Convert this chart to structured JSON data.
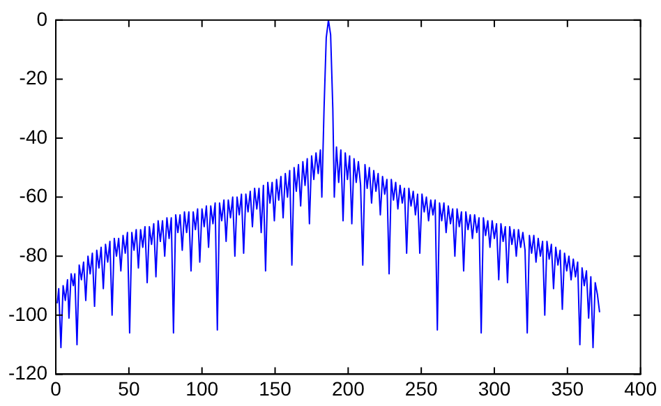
{
  "chart_data": {
    "type": "line",
    "xlim": [
      0,
      400
    ],
    "ylim": [
      -120,
      0
    ],
    "xticks": [
      0,
      50,
      100,
      150,
      200,
      250,
      300,
      350,
      400
    ],
    "yticks": [
      -120,
      -100,
      -80,
      -60,
      -40,
      -20,
      0
    ],
    "grid": false,
    "legend": false,
    "marker": "none",
    "line_style": "solid",
    "series": [
      {
        "color": "#0000ff",
        "x": [
          1,
          2,
          3.5,
          5,
          6.5,
          8,
          9,
          10.5,
          12,
          13,
          14.5,
          16,
          17.5,
          19,
          20.5,
          22,
          23.5,
          25,
          26.5,
          28,
          29.5,
          31,
          32.5,
          34,
          35.5,
          37,
          38.5,
          40,
          41.5,
          43,
          44.5,
          46,
          47.5,
          49,
          50.5,
          52,
          53.5,
          55,
          56.5,
          58,
          59.5,
          61,
          62.5,
          64,
          65.5,
          67,
          68.5,
          70,
          71.5,
          73,
          74.5,
          76,
          77.5,
          79,
          80.5,
          82,
          83.5,
          85,
          86.5,
          88,
          89.5,
          91,
          92.5,
          94,
          95.5,
          97,
          98.5,
          100,
          101.5,
          103,
          104.5,
          106,
          107.5,
          109,
          110.5,
          112,
          113.5,
          115,
          116.5,
          118,
          119.5,
          121,
          122.5,
          124,
          125.5,
          127,
          128.5,
          130,
          131.5,
          133,
          134.5,
          136,
          137.5,
          139,
          140.5,
          142,
          143.5,
          145,
          146.5,
          148,
          149.5,
          151,
          152.5,
          154,
          155.5,
          157,
          158.5,
          160,
          161.5,
          163,
          164.5,
          166,
          167.5,
          169,
          170.5,
          172,
          173.5,
          175,
          176.5,
          178,
          179.5,
          181,
          182,
          183.5,
          185,
          186.5,
          188,
          189.5,
          190.5,
          192,
          193.5,
          195,
          196.5,
          198,
          199.5,
          201,
          202.5,
          204,
          205.5,
          207,
          208.5,
          210,
          211.5,
          213,
          214.5,
          216,
          217.5,
          219,
          220.5,
          222,
          223.5,
          225,
          226.5,
          228,
          229.5,
          231,
          232.5,
          234,
          235.5,
          237,
          238.5,
          240,
          241.5,
          243,
          244.5,
          246,
          247.5,
          249,
          250.5,
          252,
          253.5,
          255,
          256.5,
          258,
          259.5,
          261,
          262.5,
          264,
          265.5,
          267,
          268.5,
          270,
          271.5,
          273,
          274.5,
          276,
          277.5,
          279,
          280.5,
          282,
          283.5,
          285,
          286.5,
          288,
          289.5,
          291,
          292.5,
          294,
          295.5,
          297,
          298.5,
          300,
          301.5,
          303,
          304.5,
          306,
          307.5,
          309,
          310.5,
          312,
          313.5,
          315,
          316.5,
          318,
          319.5,
          321,
          322.5,
          324,
          325.5,
          327,
          328.5,
          330,
          331.5,
          333,
          334.5,
          336,
          337.5,
          339,
          340.5,
          342,
          343.5,
          345,
          346.5,
          348,
          349.5,
          351,
          352.5,
          354,
          355.5,
          357,
          358.5,
          360,
          361.5,
          363,
          364.5,
          366,
          367.5,
          369,
          370.5,
          372
        ],
        "values": [
          -96,
          -91,
          -111,
          -90,
          -95,
          -88,
          -101,
          -86,
          -90,
          -86,
          -110,
          -83,
          -88,
          -82,
          -95,
          -80,
          -86,
          -79,
          -97,
          -78,
          -84,
          -77,
          -91,
          -76,
          -82,
          -75,
          -100,
          -74,
          -80,
          -74,
          -85,
          -73,
          -79,
          -72,
          -106,
          -72,
          -78,
          -71,
          -84,
          -71,
          -77,
          -70,
          -89,
          -70,
          -76,
          -69,
          -87,
          -68,
          -75,
          -68,
          -80,
          -67,
          -74,
          -67,
          -106,
          -66,
          -72,
          -66,
          -78,
          -65,
          -72,
          -65,
          -85,
          -65,
          -71,
          -64,
          -82,
          -64,
          -70,
          -63,
          -77,
          -63,
          -69,
          -62,
          -105,
          -62,
          -68,
          -61,
          -75,
          -61,
          -67,
          -60,
          -80,
          -60,
          -66,
          -59,
          -79,
          -59,
          -65,
          -58,
          -70,
          -57,
          -64,
          -57,
          -72,
          -56,
          -85,
          -55,
          -62,
          -55,
          -68,
          -54,
          -61,
          -53,
          -67,
          -52,
          -60,
          -51,
          -83,
          -50,
          -58,
          -49,
          -63,
          -48,
          -56,
          -47,
          -69,
          -46,
          -54,
          -45,
          -52,
          -44,
          -60,
          -30,
          -6,
          0,
          -5,
          -30,
          -60,
          -43,
          -55,
          -44,
          -68,
          -45,
          -54,
          -46,
          -69,
          -47,
          -55,
          -48,
          -56,
          -83,
          -49,
          -57,
          -50,
          -62,
          -51,
          -58,
          -52,
          -66,
          -53,
          -59,
          -54,
          -86,
          -54,
          -61,
          -55,
          -64,
          -56,
          -62,
          -57,
          -79,
          -57,
          -63,
          -58,
          -66,
          -59,
          -79,
          -59,
          -65,
          -60,
          -68,
          -61,
          -66,
          -61,
          -105,
          -62,
          -68,
          -62,
          -72,
          -63,
          -69,
          -64,
          -80,
          -64,
          -70,
          -65,
          -85,
          -65,
          -71,
          -66,
          -74,
          -66,
          -72,
          -67,
          -106,
          -67,
          -73,
          -68,
          -77,
          -68,
          -74,
          -69,
          -88,
          -69,
          -75,
          -70,
          -89,
          -70,
          -76,
          -71,
          -80,
          -71,
          -77,
          -72,
          -78,
          -106,
          -73,
          -79,
          -73,
          -82,
          -74,
          -80,
          -75,
          -100,
          -75,
          -81,
          -76,
          -91,
          -77,
          -83,
          -78,
          -98,
          -79,
          -85,
          -80,
          -88,
          -81,
          -87,
          -82,
          -110,
          -84,
          -90,
          -85,
          -101,
          -87,
          -111,
          -89,
          -93,
          -99
        ]
      }
    ]
  }
}
